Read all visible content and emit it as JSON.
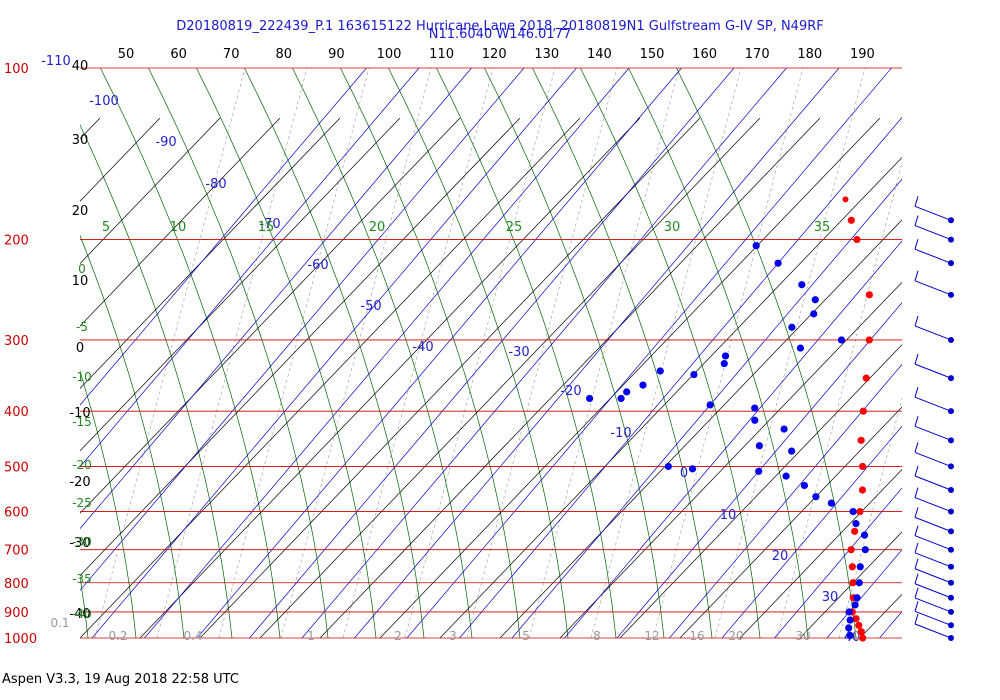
{
  "header": {
    "line1": "D20180819_222439_P.1 163615122 Hurricane Lane 2018, 20180819N1 Gulfstream G-IV SP, N49RF",
    "line2": "N11.6040 W146.0177"
  },
  "footer": "Aspen V3.3, 19 Aug 2018  22:58 UTC",
  "colors": {
    "isobar": "#cc0000",
    "isotherm": "#0000cc",
    "dry_adiabat": "#000000",
    "moist_adiabat": "#006600",
    "mixing_ratio": "#999999",
    "temperature": "#ff0000",
    "dewpoint": "#0000ee",
    "wind": "#0000cc"
  },
  "chart_data": {
    "type": "scatter",
    "title": "",
    "xlabel": "",
    "ylabel": "",
    "pressure_range_hpa": [
      1000,
      100
    ],
    "pressure_axis": "log",
    "top_scale": [
      "50",
      "60",
      "70",
      "80",
      "90",
      "100",
      "110",
      "120",
      "130",
      "140",
      "150",
      "160",
      "170",
      "180",
      "190"
    ],
    "pressure_labels": [
      "100",
      "200",
      "300",
      "400",
      "500",
      "600",
      "700",
      "800",
      "900",
      "1000"
    ],
    "isobar_values": [
      100,
      200,
      300,
      400,
      500,
      600,
      700,
      800,
      900,
      1000
    ],
    "isotherms_c": [
      -110,
      -100,
      -90,
      -80,
      -70,
      -60,
      -50,
      -40,
      -30,
      -20,
      -10,
      0,
      10,
      20,
      30,
      40
    ],
    "isotherm_labels": [
      "-110",
      "-100",
      "-90",
      "-80",
      "-70",
      "-60",
      "-50",
      "-40",
      "-30",
      "-20",
      "-10",
      "0",
      "10",
      "20",
      "30",
      "40"
    ],
    "dry_adiabat_labels": [
      "40",
      "30",
      "20",
      "10",
      "0",
      "-10",
      "-20",
      "-30",
      "-40"
    ],
    "moist_adiabat_labels_left": [
      "0",
      "-5",
      "-10",
      "-15",
      "-20",
      "-25",
      "-30",
      "-35",
      "-40"
    ],
    "moist_adiabat_labels_top": [
      "5",
      "10",
      "15",
      "20",
      "25",
      "30",
      "35"
    ],
    "mixing_ratio_labels": [
      "0.1",
      "0.2",
      "0.4",
      "1",
      "2",
      "3",
      "5",
      "8",
      "12",
      "16",
      "20",
      "30",
      "40"
    ],
    "series": [
      {
        "type": "line",
        "points": [
          [
            1000,
            26.8
          ],
          [
            975,
            25.5
          ],
          [
            950,
            24.0
          ],
          [
            925,
            22.4
          ],
          [
            900,
            20.6
          ],
          [
            850,
            18.5
          ],
          [
            800,
            16.0
          ],
          [
            750,
            13.3
          ],
          [
            700,
            10.3
          ],
          [
            650,
            8.0
          ],
          [
            600,
            5.8
          ],
          [
            550,
            2.8
          ],
          [
            500,
            -1.0
          ],
          [
            450,
            -5.5
          ],
          [
            400,
            -9.8
          ],
          [
            350,
            -14.6
          ],
          [
            300,
            -20.2
          ],
          [
            250,
            -27.5
          ],
          [
            200,
            -38.8
          ],
          [
            185,
            -43.0
          ]
        ],
        "isolated_point": [
          170,
          -47.5
        ]
      },
      {
        "type": "scatter",
        "points": [
          [
            990,
            24.0
          ],
          [
            960,
            22.5
          ],
          [
            930,
            21.5
          ],
          [
            900,
            20.0
          ],
          [
            875,
            20.0
          ],
          [
            850,
            19.2
          ],
          [
            800,
            17.2
          ],
          [
            750,
            14.8
          ],
          [
            700,
            13.0
          ],
          [
            660,
            10.5
          ],
          [
            630,
            7.0
          ],
          [
            600,
            4.5
          ],
          [
            580,
            -1.0
          ],
          [
            565,
            -5.0
          ],
          [
            540,
            -9.0
          ],
          [
            520,
            -14.0
          ],
          [
            510,
            -20.0
          ],
          [
            505,
            -33.0
          ],
          [
            500,
            -38.0
          ],
          [
            470,
            -17.0
          ],
          [
            460,
            -24.0
          ],
          [
            430,
            -22.0
          ],
          [
            415,
            -29.0
          ],
          [
            395,
            -31.0
          ],
          [
            390,
            -40.0
          ],
          [
            380,
            -58.0
          ],
          [
            380,
            -64.0
          ],
          [
            370,
            -58.0
          ],
          [
            360,
            -56.0
          ],
          [
            345,
            -48.0
          ],
          [
            340,
            -55.0
          ],
          [
            330,
            -44.0
          ],
          [
            320,
            -45.0
          ],
          [
            310,
            -32.0
          ],
          [
            300,
            -25.5
          ],
          [
            285,
            -37.0
          ],
          [
            270,
            -35.0
          ],
          [
            255,
            -37.0
          ],
          [
            240,
            -42.0
          ],
          [
            220,
            -50.0
          ],
          [
            205,
            -57.0
          ]
        ]
      }
    ],
    "wind_barb_levels_hpa": [
      1000,
      950,
      900,
      850,
      800,
      750,
      700,
      650,
      600,
      550,
      500,
      450,
      400,
      350,
      300,
      250,
      220,
      200,
      185
    ]
  }
}
